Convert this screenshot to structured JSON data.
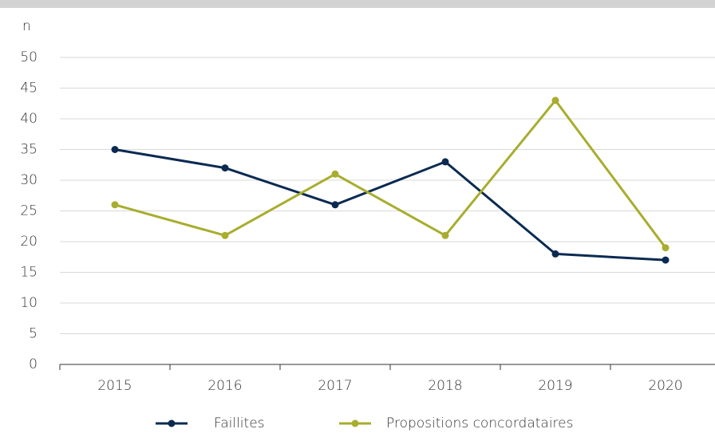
{
  "chart_data": {
    "type": "line",
    "y_label": "n",
    "categories": [
      "2015",
      "2016",
      "2017",
      "2018",
      "2019",
      "2020"
    ],
    "series": [
      {
        "name": "Faillites",
        "color": "#0b2a52",
        "values": [
          35,
          32,
          26,
          33,
          18,
          17
        ]
      },
      {
        "name": "Propositions concordataires",
        "color": "#a8ad2e",
        "values": [
          26,
          21,
          31,
          21,
          43,
          19
        ]
      }
    ],
    "ylim": [
      0,
      50
    ],
    "yticks": [
      0,
      5,
      10,
      15,
      20,
      25,
      30,
      35,
      40,
      45,
      50
    ],
    "grid": true,
    "legend": "bottom"
  }
}
